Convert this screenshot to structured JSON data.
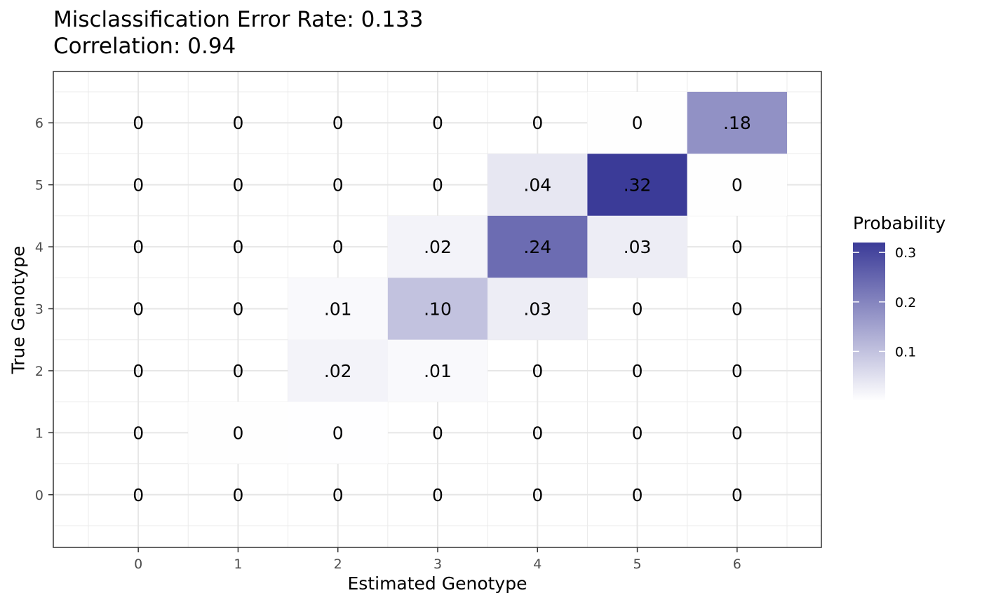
{
  "chart_data": {
    "type": "heatmap",
    "title": "Misclassification Error Rate: 0.133",
    "subtitle": "Correlation: 0.94",
    "xlabel": "Estimated Genotype",
    "ylabel": "True Genotype",
    "x_categories": [
      "0",
      "1",
      "2",
      "3",
      "4",
      "5",
      "6"
    ],
    "y_categories": [
      "0",
      "1",
      "2",
      "3",
      "4",
      "5",
      "6"
    ],
    "cells": [
      {
        "x": 0,
        "y": 6,
        "value": 0,
        "label": "0"
      },
      {
        "x": 1,
        "y": 6,
        "value": 0,
        "label": "0"
      },
      {
        "x": 2,
        "y": 6,
        "value": 0,
        "label": "0"
      },
      {
        "x": 3,
        "y": 6,
        "value": 0,
        "label": "0"
      },
      {
        "x": 4,
        "y": 6,
        "value": 0,
        "label": "0"
      },
      {
        "x": 5,
        "y": 6,
        "value": 0.002,
        "label": "0"
      },
      {
        "x": 6,
        "y": 6,
        "value": 0.18,
        "label": ".18"
      },
      {
        "x": 0,
        "y": 5,
        "value": 0,
        "label": "0"
      },
      {
        "x": 1,
        "y": 5,
        "value": 0,
        "label": "0"
      },
      {
        "x": 2,
        "y": 5,
        "value": 0,
        "label": "0"
      },
      {
        "x": 3,
        "y": 5,
        "value": 0,
        "label": "0"
      },
      {
        "x": 4,
        "y": 5,
        "value": 0.04,
        "label": ".04"
      },
      {
        "x": 5,
        "y": 5,
        "value": 0.32,
        "label": ".32"
      },
      {
        "x": 6,
        "y": 5,
        "value": 0.002,
        "label": "0"
      },
      {
        "x": 0,
        "y": 4,
        "value": 0,
        "label": "0"
      },
      {
        "x": 1,
        "y": 4,
        "value": 0,
        "label": "0"
      },
      {
        "x": 2,
        "y": 4,
        "value": 0,
        "label": "0"
      },
      {
        "x": 3,
        "y": 4,
        "value": 0.02,
        "label": ".02"
      },
      {
        "x": 4,
        "y": 4,
        "value": 0.24,
        "label": ".24"
      },
      {
        "x": 5,
        "y": 4,
        "value": 0.03,
        "label": ".03"
      },
      {
        "x": 6,
        "y": 4,
        "value": 0,
        "label": "0"
      },
      {
        "x": 0,
        "y": 3,
        "value": 0,
        "label": "0"
      },
      {
        "x": 1,
        "y": 3,
        "value": 0,
        "label": "0"
      },
      {
        "x": 2,
        "y": 3,
        "value": 0.01,
        "label": ".01"
      },
      {
        "x": 3,
        "y": 3,
        "value": 0.1,
        "label": ".10"
      },
      {
        "x": 4,
        "y": 3,
        "value": 0.03,
        "label": ".03"
      },
      {
        "x": 5,
        "y": 3,
        "value": 0,
        "label": "0"
      },
      {
        "x": 6,
        "y": 3,
        "value": 0,
        "label": "0"
      },
      {
        "x": 0,
        "y": 2,
        "value": 0,
        "label": "0"
      },
      {
        "x": 1,
        "y": 2,
        "value": 0,
        "label": "0"
      },
      {
        "x": 2,
        "y": 2,
        "value": 0.02,
        "label": ".02"
      },
      {
        "x": 3,
        "y": 2,
        "value": 0.01,
        "label": ".01"
      },
      {
        "x": 4,
        "y": 2,
        "value": 0,
        "label": "0"
      },
      {
        "x": 5,
        "y": 2,
        "value": 0,
        "label": "0"
      },
      {
        "x": 6,
        "y": 2,
        "value": 0,
        "label": "0"
      },
      {
        "x": 0,
        "y": 1,
        "value": 0,
        "label": "0"
      },
      {
        "x": 1,
        "y": 1,
        "value": 0.002,
        "label": "0"
      },
      {
        "x": 2,
        "y": 1,
        "value": 0.001,
        "label": "0"
      },
      {
        "x": 3,
        "y": 1,
        "value": 0,
        "label": "0"
      },
      {
        "x": 4,
        "y": 1,
        "value": 0,
        "label": "0"
      },
      {
        "x": 5,
        "y": 1,
        "value": 0,
        "label": "0"
      },
      {
        "x": 6,
        "y": 1,
        "value": 0,
        "label": "0"
      },
      {
        "x": 0,
        "y": 0,
        "value": 0,
        "label": "0"
      },
      {
        "x": 1,
        "y": 0,
        "value": 0,
        "label": "0"
      },
      {
        "x": 2,
        "y": 0,
        "value": 0,
        "label": "0"
      },
      {
        "x": 3,
        "y": 0,
        "value": 0,
        "label": "0"
      },
      {
        "x": 4,
        "y": 0,
        "value": 0,
        "label": "0"
      },
      {
        "x": 5,
        "y": 0,
        "value": 0,
        "label": "0"
      },
      {
        "x": 6,
        "y": 0,
        "value": 0,
        "label": "0"
      }
    ],
    "xlim": [
      -0.5,
      6.5
    ],
    "ylim": [
      -0.5,
      6.5
    ],
    "grid": true,
    "legend": {
      "title": "Probability",
      "placement": "right",
      "ticks": [
        0.1,
        0.2,
        0.3
      ],
      "tick_labels": [
        "0.1",
        "0.2",
        "0.3"
      ],
      "range": [
        0,
        0.32
      ],
      "color_low": "#ffffff",
      "color_high": "#3b3b98"
    }
  }
}
